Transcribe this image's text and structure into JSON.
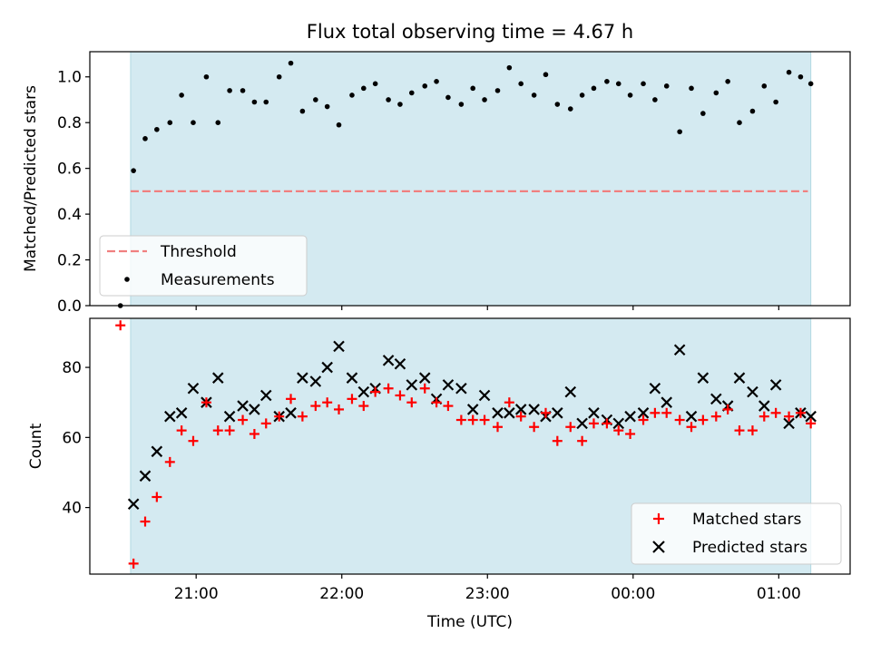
{
  "chart_data": [
    {
      "type": "scatter",
      "title": "Flux total observing time = 4.67 h",
      "xlabel": "",
      "ylabel": "Matched/Predicted stars",
      "x_unit": "hour_utc",
      "xlim": [
        20.27,
        25.49
      ],
      "ylim": [
        0.0,
        1.11
      ],
      "yticks": [
        0.0,
        0.2,
        0.4,
        0.6,
        0.8,
        1.0
      ],
      "ytick_labels": [
        "0.0",
        "0.2",
        "0.4",
        "0.6",
        "0.8",
        "1.0"
      ],
      "grid": false,
      "shaded_span": {
        "x0": 20.55,
        "x1": 25.22,
        "color": "#d4eaf1"
      },
      "threshold": {
        "name": "Threshold",
        "y": 0.5,
        "x0": 20.55,
        "x1": 25.2,
        "color": "#f08080",
        "style": "dashed"
      },
      "legend": {
        "placement": "lower-left",
        "entries": [
          "Threshold",
          "Measurements"
        ]
      },
      "series": [
        {
          "name": "Measurements",
          "marker": "dot",
          "color": "#000000",
          "x": [
            20.48,
            20.57,
            20.65,
            20.73,
            20.82,
            20.9,
            20.98,
            21.07,
            21.15,
            21.23,
            21.32,
            21.4,
            21.48,
            21.57,
            21.65,
            21.73,
            21.82,
            21.9,
            21.98,
            22.07,
            22.15,
            22.23,
            22.32,
            22.4,
            22.48,
            22.57,
            22.65,
            22.73,
            22.82,
            22.9,
            22.98,
            23.07,
            23.15,
            23.23,
            23.32,
            23.4,
            23.48,
            23.57,
            23.65,
            23.73,
            23.82,
            23.9,
            23.98,
            24.07,
            24.15,
            24.23,
            24.32,
            24.4,
            24.48,
            24.57,
            24.65,
            24.73,
            24.82,
            24.9,
            24.98,
            25.07,
            25.15,
            25.22
          ],
          "y": [
            0.0,
            0.59,
            0.73,
            0.77,
            0.8,
            0.92,
            0.8,
            1.0,
            0.8,
            0.94,
            0.94,
            0.89,
            0.89,
            1.0,
            1.06,
            0.85,
            0.9,
            0.87,
            0.79,
            0.92,
            0.95,
            0.97,
            0.9,
            0.88,
            0.93,
            0.96,
            0.98,
            0.91,
            0.88,
            0.95,
            0.9,
            0.94,
            1.04,
            0.97,
            0.92,
            1.01,
            0.88,
            0.86,
            0.92,
            0.95,
            0.98,
            0.97,
            0.92,
            0.97,
            0.9,
            0.96,
            0.76,
            0.95,
            0.84,
            0.93,
            0.98,
            0.8,
            0.85,
            0.96,
            0.89,
            1.02,
            1.0,
            0.97
          ]
        }
      ]
    },
    {
      "type": "scatter",
      "title": "",
      "xlabel": "Time (UTC)",
      "ylabel": "Count",
      "x_unit": "hour_utc",
      "xlim": [
        20.27,
        25.49
      ],
      "ylim": [
        21,
        94
      ],
      "yticks": [
        40,
        60,
        80
      ],
      "ytick_labels": [
        "40",
        "60",
        "80"
      ],
      "xticks": [
        21,
        22,
        23,
        24,
        25
      ],
      "xtick_labels": [
        "21:00",
        "22:00",
        "23:00",
        "00:00",
        "01:00"
      ],
      "grid": false,
      "shaded_span": {
        "x0": 20.55,
        "x1": 25.22,
        "color": "#d4eaf1"
      },
      "legend": {
        "placement": "lower-right",
        "entries": [
          "Matched stars",
          "Predicted stars"
        ]
      },
      "series": [
        {
          "name": "Matched stars",
          "marker": "plus",
          "color": "#ff0000",
          "x": [
            20.48,
            20.57,
            20.65,
            20.73,
            20.82,
            20.9,
            20.98,
            21.07,
            21.15,
            21.23,
            21.32,
            21.4,
            21.48,
            21.57,
            21.65,
            21.73,
            21.82,
            21.9,
            21.98,
            22.07,
            22.15,
            22.23,
            22.32,
            22.4,
            22.48,
            22.57,
            22.65,
            22.73,
            22.82,
            22.9,
            22.98,
            23.07,
            23.15,
            23.23,
            23.32,
            23.4,
            23.48,
            23.57,
            23.65,
            23.73,
            23.82,
            23.9,
            23.98,
            24.07,
            24.15,
            24.23,
            24.32,
            24.4,
            24.48,
            24.57,
            24.65,
            24.73,
            24.82,
            24.9,
            24.98,
            25.07,
            25.15,
            25.22
          ],
          "y": [
            92,
            24,
            36,
            43,
            53,
            62,
            59,
            70,
            62,
            62,
            65,
            61,
            64,
            66,
            71,
            66,
            69,
            70,
            68,
            71,
            69,
            73,
            74,
            72,
            70,
            74,
            70,
            69,
            65,
            65,
            65,
            63,
            70,
            66,
            63,
            67,
            59,
            63,
            59,
            64,
            64,
            62,
            61,
            65,
            67,
            67,
            65,
            63,
            65,
            66,
            68,
            62,
            62,
            66,
            67,
            66,
            67,
            64
          ]
        },
        {
          "name": "Predicted stars",
          "marker": "x",
          "color": "#000000",
          "x": [
            20.57,
            20.65,
            20.73,
            20.82,
            20.9,
            20.98,
            21.07,
            21.15,
            21.23,
            21.32,
            21.4,
            21.48,
            21.57,
            21.65,
            21.73,
            21.82,
            21.9,
            21.98,
            22.07,
            22.15,
            22.23,
            22.32,
            22.4,
            22.48,
            22.57,
            22.65,
            22.73,
            22.82,
            22.9,
            22.98,
            23.07,
            23.15,
            23.23,
            23.32,
            23.4,
            23.48,
            23.57,
            23.65,
            23.73,
            23.82,
            23.9,
            23.98,
            24.07,
            24.15,
            24.23,
            24.32,
            24.4,
            24.48,
            24.57,
            24.65,
            24.73,
            24.82,
            24.9,
            24.98,
            25.07,
            25.15,
            25.22
          ],
          "y": [
            41,
            49,
            56,
            66,
            67,
            74,
            70,
            77,
            66,
            69,
            68,
            72,
            66,
            67,
            77,
            76,
            80,
            86,
            77,
            73,
            74,
            82,
            81,
            75,
            77,
            71,
            75,
            74,
            68,
            72,
            67,
            67,
            68,
            68,
            66,
            67,
            73,
            64,
            67,
            65,
            64,
            66,
            67,
            74,
            70,
            85,
            66,
            77,
            71,
            69,
            77,
            73,
            69,
            75,
            64,
            67,
            66
          ]
        }
      ]
    }
  ]
}
